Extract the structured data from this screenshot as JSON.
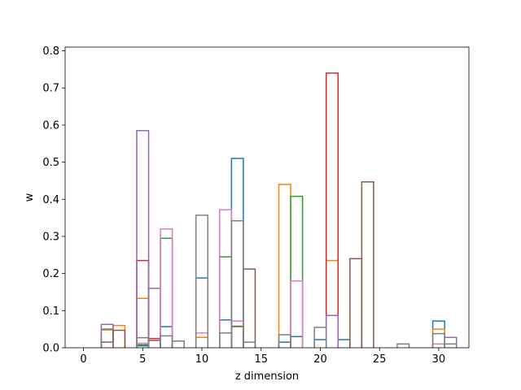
{
  "chart_data": {
    "type": "step-histogram",
    "title": "",
    "xlabel": "z dimension",
    "ylabel": "w",
    "xlim": [
      -1.55,
      32.55
    ],
    "ylim": [
      0,
      0.81
    ],
    "xticks": [
      0,
      5,
      10,
      15,
      20,
      25,
      30
    ],
    "yticks": [
      0.0,
      0.1,
      0.2,
      0.3,
      0.4,
      0.5,
      0.6,
      0.7,
      0.8
    ],
    "grid": false,
    "legend": "none",
    "bin_width": 1,
    "series": [
      {
        "color": "#1f77b4",
        "bins": [
          [
            17,
            0.015
          ],
          [
            18,
            0.03
          ],
          [
            20,
            0.022
          ],
          [
            22,
            0.022
          ],
          [
            30,
            0.072
          ],
          [
            12,
            0.075
          ],
          [
            13,
            0.51
          ],
          [
            10,
            0.188
          ],
          [
            7,
            0.057
          ],
          [
            5,
            0.008
          ],
          [
            2,
            0.05
          ]
        ]
      },
      {
        "color": "#ff7f0e",
        "bins": [
          [
            17,
            0.44
          ],
          [
            2,
            0.048
          ],
          [
            3,
            0.06
          ],
          [
            5,
            0.133
          ],
          [
            21,
            0.235
          ],
          [
            30,
            0.05
          ],
          [
            10,
            0.028
          ]
        ]
      },
      {
        "color": "#2ca02c",
        "bins": [
          [
            18,
            0.408
          ],
          [
            12,
            0.245
          ],
          [
            7,
            0.295
          ],
          [
            13,
            0.057
          ],
          [
            5,
            0.005
          ]
        ]
      },
      {
        "color": "#d62728",
        "bins": [
          [
            21,
            0.74
          ],
          [
            5,
            0.235
          ],
          [
            6,
            0.025
          ]
        ]
      },
      {
        "color": "#9467bd",
        "bins": [
          [
            5,
            0.585
          ],
          [
            6,
            0.16
          ],
          [
            2,
            0.063
          ],
          [
            21,
            0.087
          ],
          [
            31,
            0.028
          ]
        ]
      },
      {
        "color": "#8c564b",
        "bins": [
          [
            23,
            0.24
          ],
          [
            24,
            0.447
          ],
          [
            14,
            0.212
          ],
          [
            3,
            0.047
          ],
          [
            2,
            0.015
          ],
          [
            6,
            0.02
          ],
          [
            13,
            0.058
          ]
        ]
      },
      {
        "color": "#e377c2",
        "bins": [
          [
            18,
            0.18
          ],
          [
            12,
            0.372
          ],
          [
            7,
            0.32
          ],
          [
            13,
            0.072
          ],
          [
            10,
            0.04
          ],
          [
            5,
            0.012
          ],
          [
            30,
            0.01
          ]
        ]
      },
      {
        "color": "#7f7f7f",
        "bins": [
          [
            10,
            0.357
          ],
          [
            13,
            0.342
          ],
          [
            12,
            0.04
          ],
          [
            20,
            0.055
          ],
          [
            17,
            0.035
          ],
          [
            5,
            0.027
          ],
          [
            7,
            0.032
          ],
          [
            8,
            0.018
          ],
          [
            14,
            0.015
          ],
          [
            27,
            0.01
          ],
          [
            30,
            0.038
          ],
          [
            31,
            0.01
          ],
          [
            2,
            0.015
          ]
        ]
      }
    ]
  }
}
